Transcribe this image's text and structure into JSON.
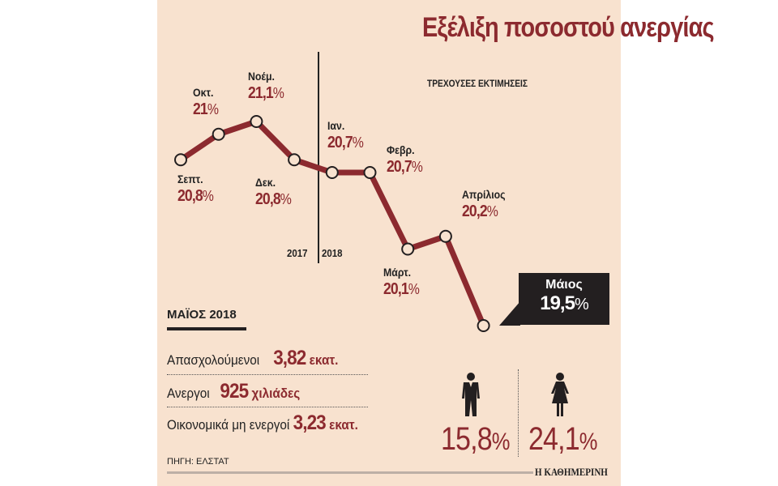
{
  "chart_data": {
    "type": "line",
    "title": "Εξέλιξη ποσοστού ανεργίας",
    "subtitle": "ΤΡΕΧΟΥΣΕΣ ΕΚΤΙΜΗΣΕΙΣ",
    "categories": [
      "Σεπτ.",
      "Οκτ.",
      "Νοέμ.",
      "Δεκ.",
      "Ιαν.",
      "Φεβρ.",
      "Μάρτ.",
      "Απρίλιος",
      "Μάιος"
    ],
    "values": [
      20.8,
      21.0,
      21.1,
      20.8,
      20.7,
      20.7,
      20.1,
      20.2,
      19.5
    ],
    "value_labels": [
      "20,8",
      "21",
      "21,1",
      "20,8",
      "20,7",
      "20,7",
      "20,1",
      "20,2",
      "19,5"
    ],
    "unit": "%",
    "year_divider": {
      "left": "2017",
      "right": "2018"
    },
    "ylim": [
      19.5,
      21.1
    ],
    "line_color": "#8c2a2f",
    "grid": false
  },
  "summary": {
    "heading": "ΜΑΪΟΣ 2018",
    "rows": [
      {
        "label": "Απασχολούμενοι",
        "value": "3,82",
        "unit": "εκατ."
      },
      {
        "label": "Ανεργοι",
        "value": "925",
        "unit": "χιλιάδες"
      },
      {
        "label": "Οικονομικά μη ενεργοί",
        "value": "3,23",
        "unit": "εκατ."
      }
    ]
  },
  "gender": {
    "men": {
      "icon": "man-icon",
      "value": "15,8",
      "unit": "%"
    },
    "women": {
      "icon": "woman-icon",
      "value": "24,1",
      "unit": "%"
    }
  },
  "footer": {
    "source": "ΠΗΓΗ: ΕΛΣΤΑΤ",
    "brand": "Η ΚΑΘΗΜΕΡΙΝΗ"
  },
  "colors": {
    "background": "#f8e2cf",
    "accent": "#8c2a2f",
    "dark": "#231f20"
  }
}
